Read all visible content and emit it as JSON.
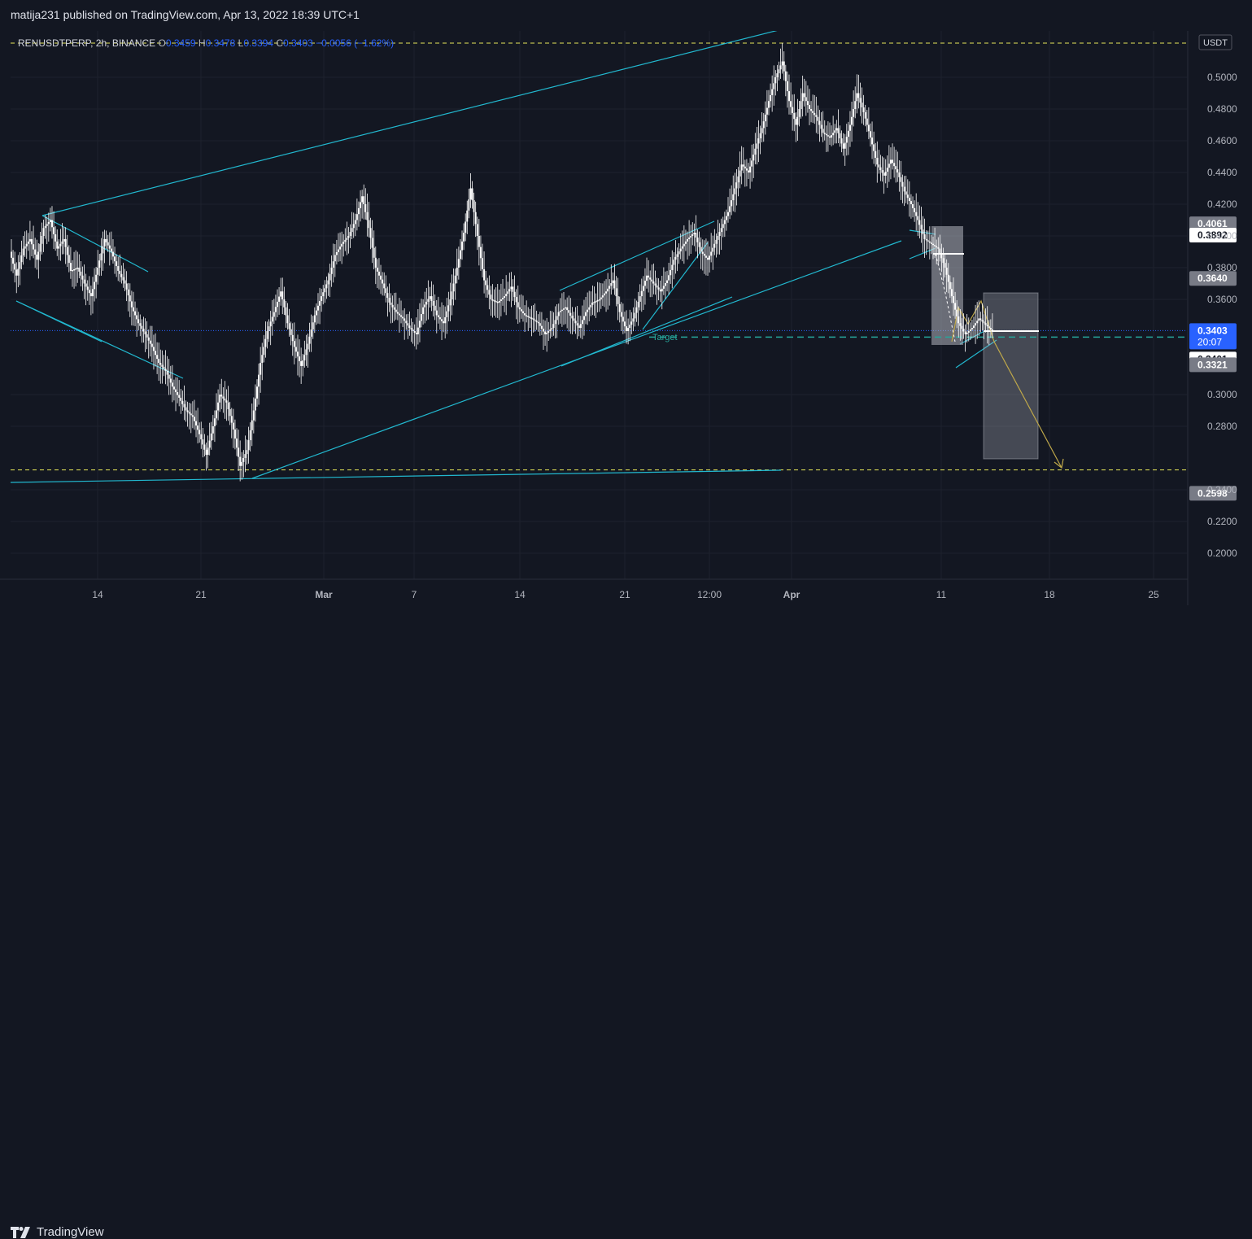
{
  "header": {
    "published_by": "matija231 published on TradingView.com, Apr 13, 2022 18:39 UTC+1"
  },
  "legend": {
    "symbol": "RENUSDTPERP, 2h, BINANCE",
    "o_label": "O",
    "o_value": "0.3459",
    "h_label": "H",
    "h_value": "0.3478",
    "l_label": "L",
    "l_value": "0.3394",
    "c_label": "C",
    "c_value": "0.3403",
    "change": "−0.0056 (−1.62%)"
  },
  "footer": {
    "brand": "TradingView",
    "logo_icon": "tradingview-logo-icon"
  },
  "colors": {
    "background": "#131722",
    "grid": "#1e222d",
    "candle": "#ffffff",
    "trendline": "#22b8cf",
    "dashed_yellow": "#e7e75a",
    "target_line": "#26a69a",
    "current_price": "#2962ff",
    "projection": "#bfa84a"
  },
  "chart_data": {
    "type": "candlestick",
    "symbol": "RENUSDTPERP",
    "interval": "2h",
    "exchange": "BINANCE",
    "currency_label": "USDT",
    "ylim": [
      0.18,
      0.52
    ],
    "y_ticks": [
      "0.5000",
      "0.4800",
      "0.4600",
      "0.4400",
      "0.4200",
      "0.4000",
      "0.3800",
      "0.3600",
      "0.3000",
      "0.2800",
      "0.2400",
      "0.2200",
      "0.2000"
    ],
    "x_ticks": [
      "14",
      "21",
      "Mar",
      "7",
      "14",
      "21",
      "12:00",
      "Apr",
      "11",
      "18",
      "25"
    ],
    "price_labels": [
      {
        "value": "0.4061",
        "style": "grey"
      },
      {
        "value": "0.3892",
        "style": "white"
      },
      {
        "value": "0.3640",
        "style": "grey"
      },
      {
        "value": "0.3403",
        "style": "blue",
        "sub": "20:07"
      },
      {
        "value": "0.3401",
        "style": "white"
      },
      {
        "value": "0.3321",
        "style": "grey"
      },
      {
        "value": "0.2598",
        "style": "grey"
      }
    ],
    "annotations": [
      {
        "text": "Target",
        "value": 0.3321
      }
    ],
    "horizontal_levels": [
      0.5,
      0.2525,
      0.3321,
      0.3403
    ],
    "price_path": [
      [
        0.39,
        0.375,
        0.392,
        0.398,
        0.385,
        0.405,
        0.41,
        0.392,
        0.398,
        0.378,
        0.38,
        0.37,
        0.362,
        0.38,
        0.398,
        0.39,
        0.378,
        0.37,
        0.355,
        0.345,
        0.338,
        0.33,
        0.32,
        0.315,
        0.305,
        0.298,
        0.29,
        0.286,
        0.275,
        0.262,
        0.28,
        0.3,
        0.295,
        0.278,
        0.255,
        0.265,
        0.29,
        0.32,
        0.34,
        0.352,
        0.365,
        0.345,
        0.33,
        0.318,
        0.332,
        0.35,
        0.362,
        0.372,
        0.388,
        0.395,
        0.4,
        0.41,
        0.425,
        0.405,
        0.38,
        0.37,
        0.358,
        0.352,
        0.348,
        0.342,
        0.338,
        0.355,
        0.362,
        0.35,
        0.345,
        0.36,
        0.38,
        0.402,
        0.43,
        0.4,
        0.372,
        0.36,
        0.358,
        0.362,
        0.368,
        0.355,
        0.35,
        0.348,
        0.345,
        0.338,
        0.342,
        0.352,
        0.355,
        0.348,
        0.342,
        0.352,
        0.358,
        0.36,
        0.365,
        0.372,
        0.352,
        0.34,
        0.348,
        0.362,
        0.375,
        0.37,
        0.365,
        0.372,
        0.385,
        0.392,
        0.398,
        0.402,
        0.39,
        0.385,
        0.395,
        0.405,
        0.415,
        0.43,
        0.445,
        0.44,
        0.455,
        0.468,
        0.485,
        0.5,
        0.51,
        0.485,
        0.47,
        0.49,
        0.48,
        0.475,
        0.465,
        0.462,
        0.468,
        0.455,
        0.47,
        0.49,
        0.478,
        0.462,
        0.445,
        0.438,
        0.448,
        0.44,
        0.428,
        0.42,
        0.41,
        0.398,
        0.395,
        0.392,
        0.38,
        0.362,
        0.345,
        0.338,
        0.342,
        0.348,
        0.344,
        0.34
      ]
    ]
  }
}
